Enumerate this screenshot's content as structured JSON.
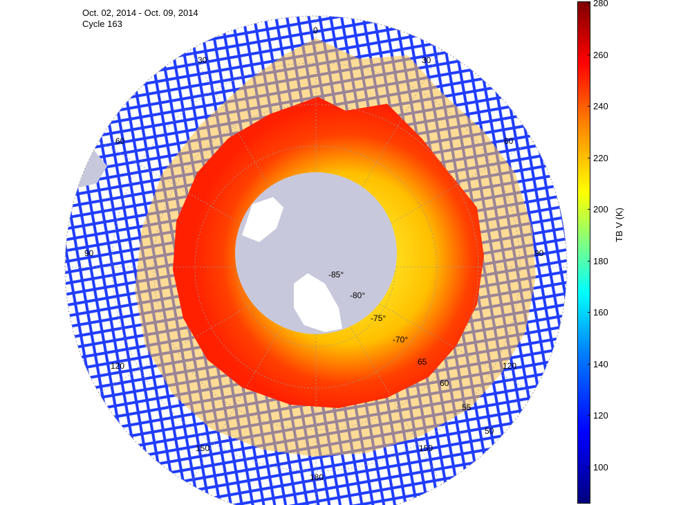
{
  "header": {
    "date_range": "Oct. 02, 2014 - Oct. 09, 2014",
    "cycle": "Cycle 163"
  },
  "map": {
    "projection": "south-polar-stereographic",
    "center_latitude": -90,
    "longitude_labels": [
      "0",
      "30",
      "30",
      "60",
      "60",
      "90",
      "90",
      "120",
      "120",
      "150",
      "150",
      "180"
    ],
    "latitude_labels": [
      "-85°",
      "-80°",
      "-75°",
      "-70°",
      "65",
      "60",
      "55",
      "50"
    ],
    "land_color": "#c8c8dc",
    "grid_color": "#999999"
  },
  "colorbar": {
    "label": "TB V (K)",
    "ticks": [
      "100",
      "120",
      "140",
      "160",
      "180",
      "200",
      "220",
      "240",
      "260",
      "280"
    ],
    "min": 100,
    "max": 280,
    "colormap": "jet"
  }
}
